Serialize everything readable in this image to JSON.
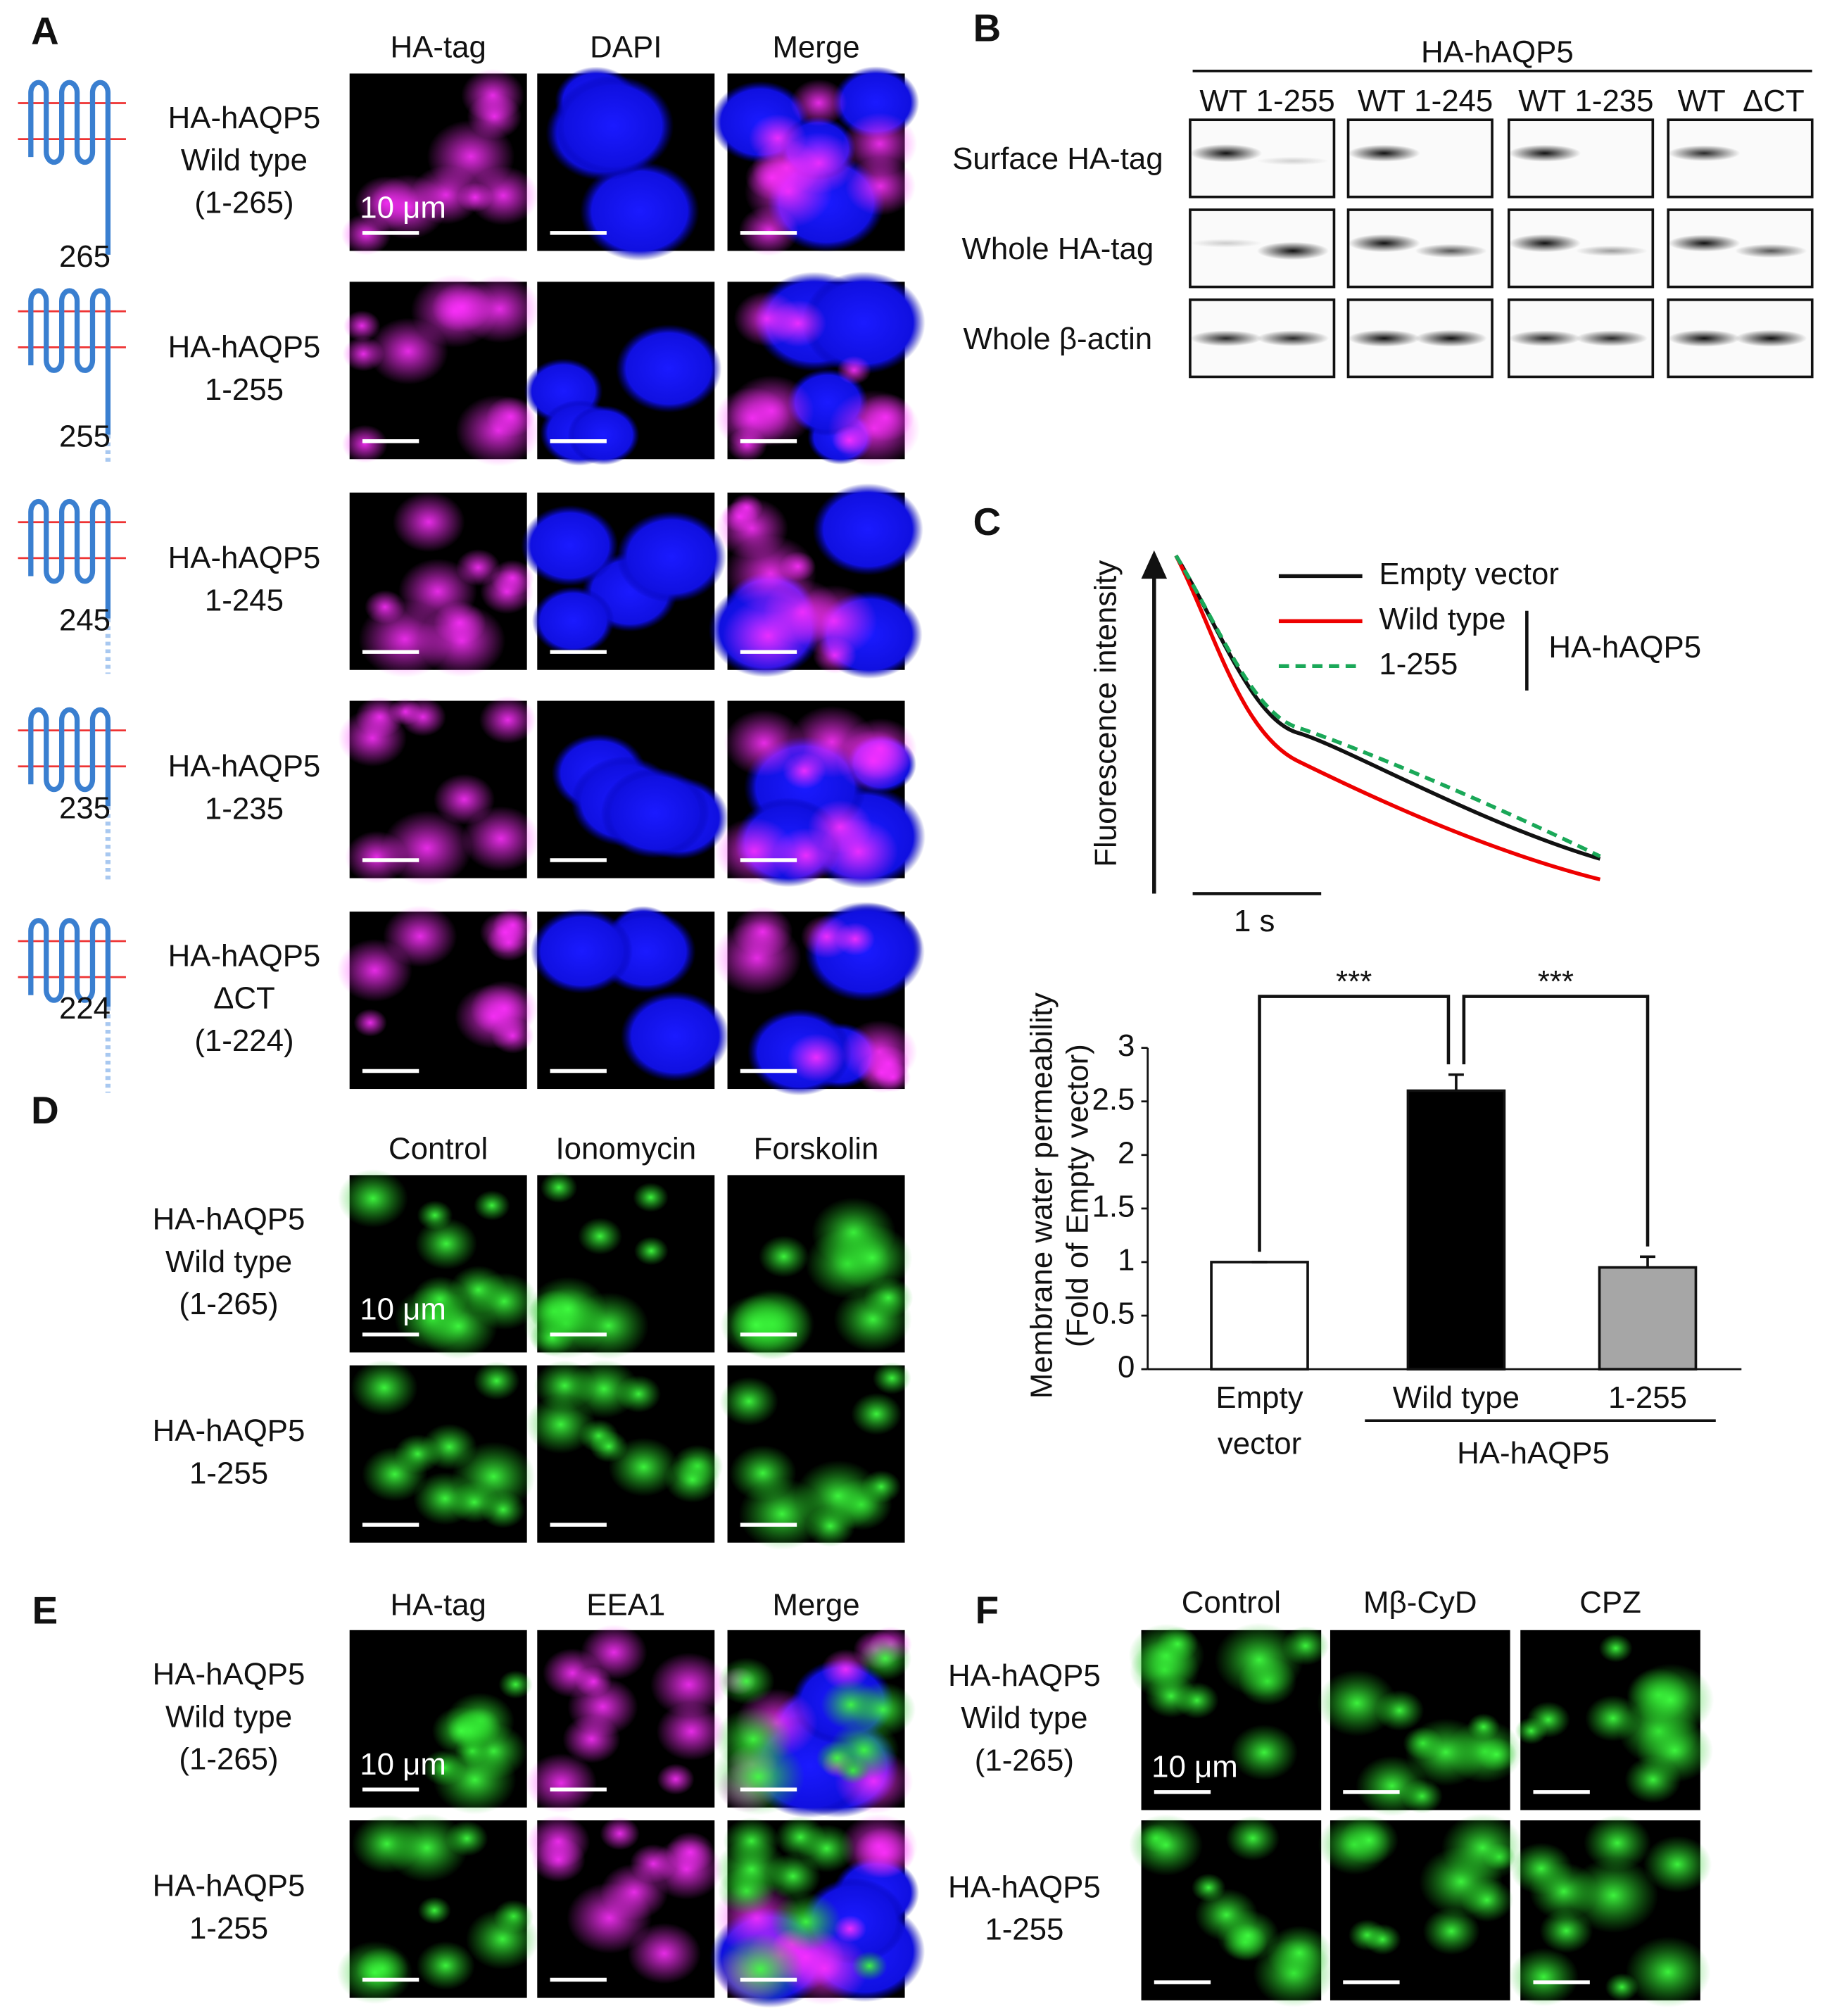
{
  "panels": {
    "a": {
      "label": "A",
      "columns": [
        "HA-tag",
        "DAPI",
        "Merge"
      ],
      "scale_bar": "10 μm",
      "rows": [
        {
          "lines": [
            "HA-hAQP5",
            "Wild type",
            "(1-265)"
          ],
          "topology_end": "265"
        },
        {
          "lines": [
            "HA-hAQP5",
            "1-255"
          ],
          "topology_end": "255"
        },
        {
          "lines": [
            "HA-hAQP5",
            "1-245"
          ],
          "topology_end": "245"
        },
        {
          "lines": [
            "HA-hAQP5",
            "1-235"
          ],
          "topology_end": "235"
        },
        {
          "lines": [
            "HA-hAQP5",
            "ΔCT",
            "(1-224)"
          ],
          "topology_end": "224"
        }
      ]
    },
    "b": {
      "label": "B",
      "header": "HA-hAQP5",
      "groups": [
        [
          "WT",
          "1-255"
        ],
        [
          "WT",
          "1-245"
        ],
        [
          "WT",
          "1-235"
        ],
        [
          "WT",
          "ΔCT"
        ]
      ],
      "rows": [
        "Surface HA-tag",
        "Whole HA-tag",
        "Whole β-actin"
      ]
    },
    "c": {
      "label": "C",
      "y_label": "Fluorescence intensity",
      "scale_bar": "1 s",
      "legend": [
        "Empty vector",
        "Wild type",
        "1-255"
      ],
      "legend_group": "HA-hAQP5"
    },
    "d": {
      "label": "D",
      "columns": [
        "Control",
        "Ionomycin",
        "Forskolin"
      ],
      "scale_bar": "10 μm",
      "rows": [
        {
          "lines": [
            "HA-hAQP5",
            "Wild type",
            "(1-265)"
          ]
        },
        {
          "lines": [
            "HA-hAQP5",
            "1-255"
          ]
        }
      ]
    },
    "e": {
      "label": "E",
      "columns": [
        "HA-tag",
        "EEA1",
        "Merge"
      ],
      "scale_bar": "10 μm",
      "rows": [
        {
          "lines": [
            "HA-hAQP5",
            "Wild type",
            "(1-265)"
          ]
        },
        {
          "lines": [
            "HA-hAQP5",
            "1-255"
          ]
        }
      ]
    },
    "f": {
      "label": "F",
      "columns": [
        "Control",
        "Mβ-CyD",
        "CPZ"
      ],
      "scale_bar": "10 μm",
      "rows": [
        {
          "lines": [
            "HA-hAQP5",
            "Wild type",
            "(1-265)"
          ]
        },
        {
          "lines": [
            "HA-hAQP5",
            "1-255"
          ]
        }
      ]
    }
  },
  "chart_data": {
    "type": "bar",
    "ylabel": "Membrane water permeability",
    "ylabel_sub": "(Fold of Empty vector)",
    "categories": [
      "Empty vector",
      "Wild type",
      "1-255"
    ],
    "values": [
      1,
      2.6,
      0.95
    ],
    "errors": [
      0,
      0.15,
      0.1
    ],
    "colors": [
      "#ffffff",
      "#000000",
      "#a6a6a6"
    ],
    "group_label": "HA-hAQP5",
    "significance": [
      "***",
      "***"
    ],
    "ylim": [
      0,
      3
    ],
    "yticks": [
      0,
      0.5,
      1,
      1.5,
      2,
      2.5,
      3
    ]
  }
}
